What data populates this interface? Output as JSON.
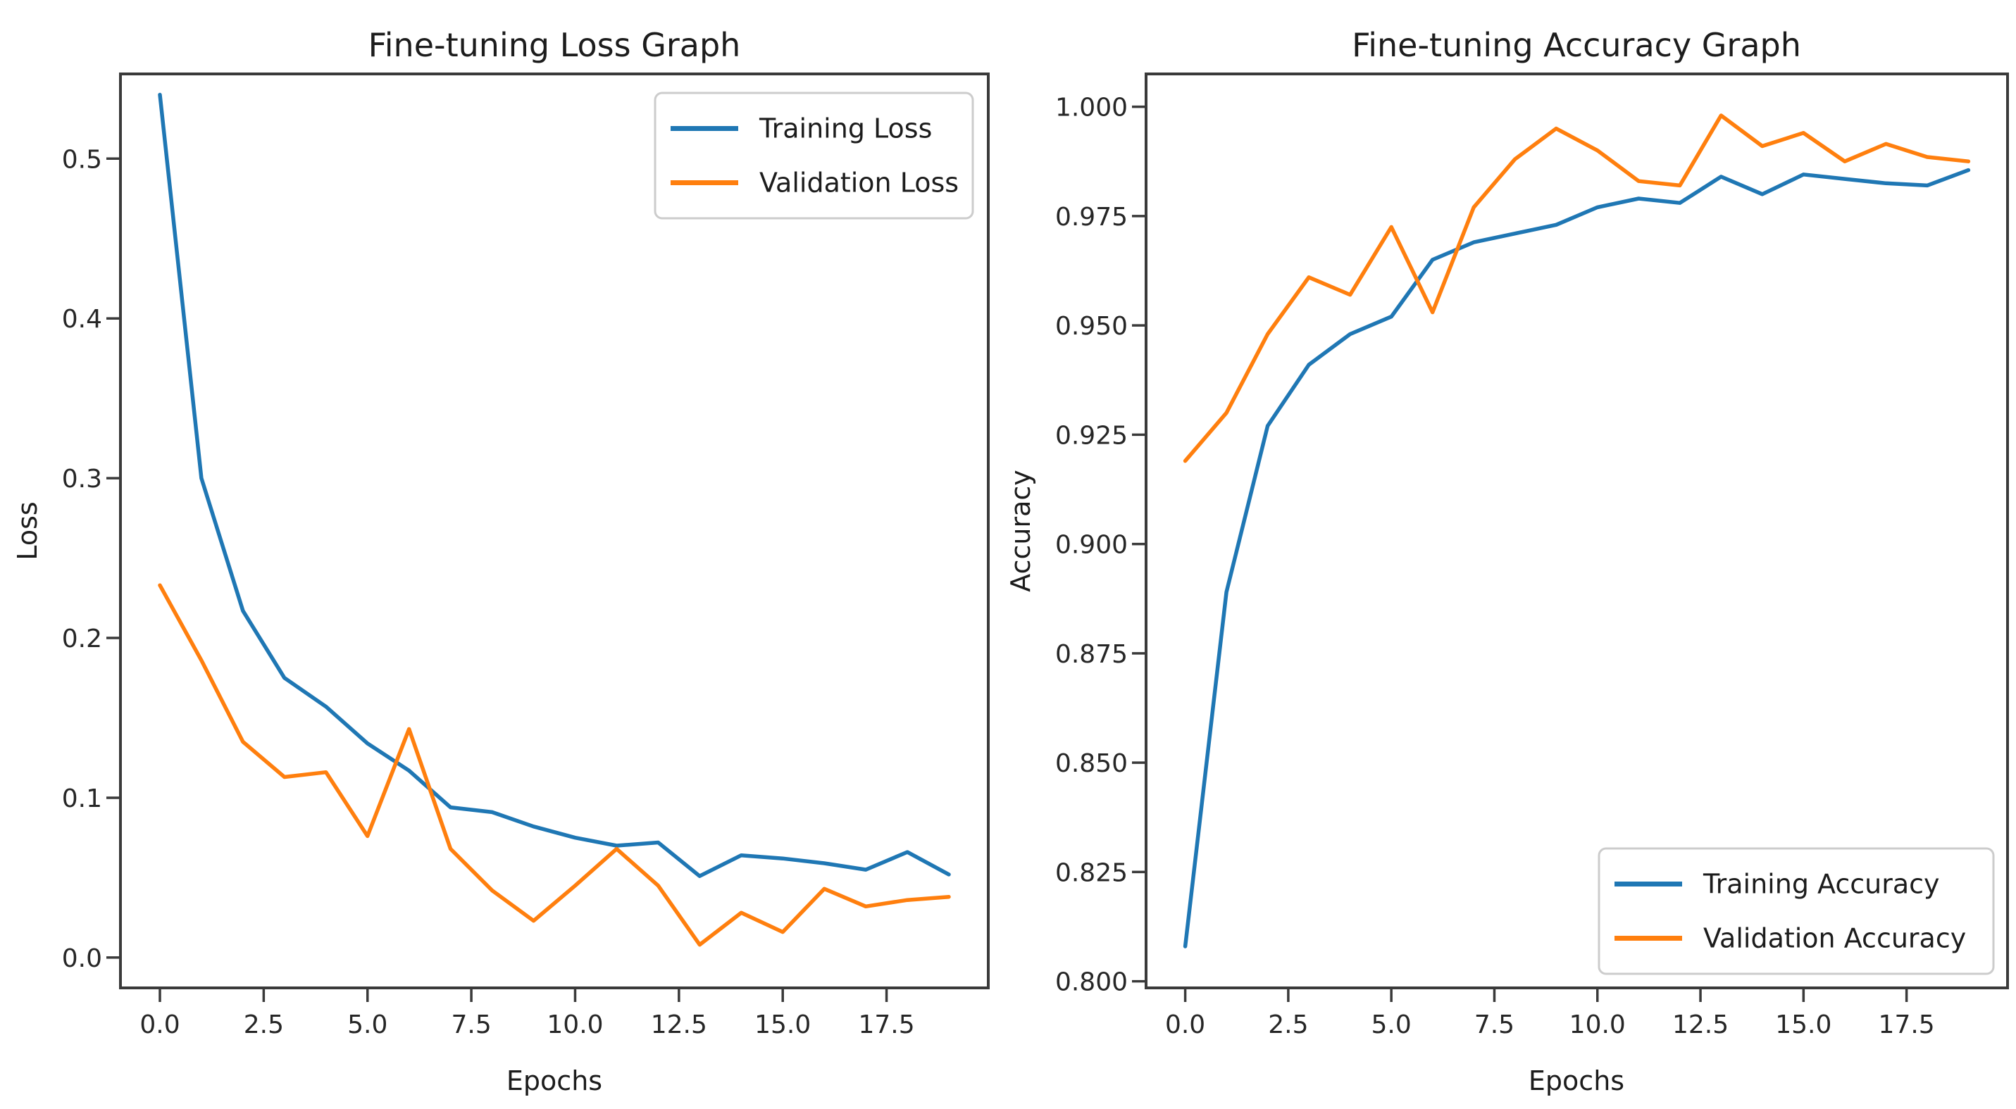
{
  "figure": {
    "background": "#ffffff",
    "text_color": "#1c1c1c",
    "spine_color": "#3a3a3a",
    "series_colors": {
      "train": "#1f77b4",
      "validation": "#ff7f0e"
    }
  },
  "chart_data": [
    {
      "type": "line",
      "title": "Fine-tuning Loss Graph",
      "xlabel": "Epochs",
      "ylabel": "Loss",
      "x": [
        0,
        1,
        2,
        3,
        4,
        5,
        6,
        7,
        8,
        9,
        10,
        11,
        12,
        13,
        14,
        15,
        16,
        17,
        18,
        19
      ],
      "series": [
        {
          "name": "Training Loss",
          "color": "#1f77b4",
          "values": [
            0.54,
            0.3,
            0.217,
            0.175,
            0.157,
            0.134,
            0.117,
            0.094,
            0.091,
            0.082,
            0.075,
            0.07,
            0.072,
            0.051,
            0.064,
            0.062,
            0.059,
            0.055,
            0.066,
            0.052
          ]
        },
        {
          "name": "Validation Loss",
          "color": "#ff7f0e",
          "values": [
            0.233,
            0.186,
            0.135,
            0.113,
            0.116,
            0.076,
            0.143,
            0.068,
            0.042,
            0.023,
            0.045,
            0.068,
            0.045,
            0.008,
            0.028,
            0.016,
            0.043,
            0.032,
            0.036,
            0.038
          ]
        }
      ],
      "xticks": {
        "values": [
          0,
          2.5,
          5,
          7.5,
          10,
          12.5,
          15,
          17.5
        ],
        "labels": [
          "0.0",
          "2.5",
          "5.0",
          "7.5",
          "10.0",
          "12.5",
          "15.0",
          "17.5"
        ]
      },
      "yticks": {
        "values": [
          0,
          0.1,
          0.2,
          0.3,
          0.4,
          0.5
        ],
        "labels": [
          "0.0",
          "0.1",
          "0.2",
          "0.3",
          "0.4",
          "0.5"
        ]
      },
      "xlim": [
        -0.95,
        19.95
      ],
      "ylim": [
        -0.019,
        0.553
      ],
      "grid": false,
      "legend": {
        "position": "upper-right"
      }
    },
    {
      "type": "line",
      "title": "Fine-tuning Accuracy Graph",
      "xlabel": "Epochs",
      "ylabel": "Accuracy",
      "x": [
        0,
        1,
        2,
        3,
        4,
        5,
        6,
        7,
        8,
        9,
        10,
        11,
        12,
        13,
        14,
        15,
        16,
        17,
        18,
        19
      ],
      "series": [
        {
          "name": "Training Accuracy",
          "color": "#1f77b4",
          "values": [
            0.808,
            0.889,
            0.927,
            0.941,
            0.948,
            0.952,
            0.965,
            0.969,
            0.971,
            0.973,
            0.977,
            0.979,
            0.978,
            0.984,
            0.98,
            0.9845,
            0.9835,
            0.9825,
            0.982,
            0.9855
          ]
        },
        {
          "name": "Validation Accuracy",
          "color": "#ff7f0e",
          "values": [
            0.919,
            0.93,
            0.948,
            0.961,
            0.957,
            0.9725,
            0.953,
            0.977,
            0.988,
            0.995,
            0.99,
            0.983,
            0.982,
            0.998,
            0.991,
            0.994,
            0.9875,
            0.9915,
            0.9885,
            0.9875
          ]
        }
      ],
      "xticks": {
        "values": [
          0,
          2.5,
          5,
          7.5,
          10,
          12.5,
          15,
          17.5
        ],
        "labels": [
          "0.0",
          "2.5",
          "5.0",
          "7.5",
          "10.0",
          "12.5",
          "15.0",
          "17.5"
        ]
      },
      "yticks": {
        "values": [
          0.8,
          0.825,
          0.85,
          0.875,
          0.9,
          0.925,
          0.95,
          0.975,
          1.0
        ],
        "labels": [
          "0.800",
          "0.825",
          "0.850",
          "0.875",
          "0.900",
          "0.925",
          "0.950",
          "0.975",
          "1.000"
        ]
      },
      "xlim": [
        -0.95,
        19.95
      ],
      "ylim": [
        0.7985,
        1.0075
      ],
      "grid": false,
      "legend": {
        "position": "lower-right"
      }
    }
  ]
}
